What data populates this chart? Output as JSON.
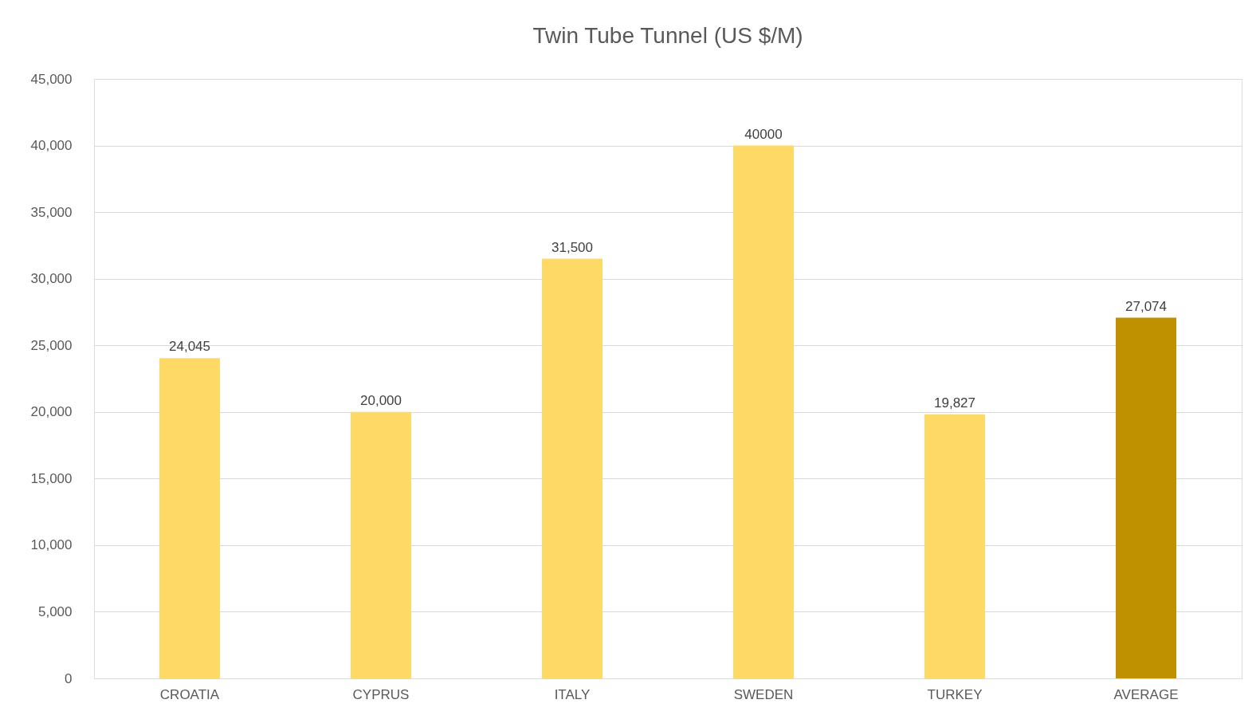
{
  "chart_data": {
    "type": "bar",
    "title": "Twin Tube Tunnel (US $/M)",
    "categories": [
      "CROATIA",
      "CYPRUS",
      "ITALY",
      "SWEDEN",
      "TURKEY",
      "AVERAGE"
    ],
    "values": [
      24045,
      20000,
      31500,
      40000,
      19827,
      27074
    ],
    "value_labels": [
      "24,045",
      "20,000",
      "31,500",
      "40000",
      "19,827",
      "27,074"
    ],
    "colors": [
      "#ffd966",
      "#ffd966",
      "#ffd966",
      "#ffd966",
      "#ffd966",
      "#bf9000"
    ],
    "ylim": [
      0,
      45000
    ],
    "yticks": [
      0,
      {
        "value": 5000,
        "label": "5,000"
      },
      {
        "value": 10000,
        "label": "10,000"
      },
      {
        "value": 15000,
        "label": "15,000"
      },
      {
        "value": 20000,
        "label": "20,000"
      },
      {
        "value": 25000,
        "label": "25,000"
      },
      {
        "value": 30000,
        "label": "30,000"
      },
      {
        "value": 35000,
        "label": "35,000"
      },
      {
        "value": 40000,
        "label": "40,000"
      },
      {
        "value": 45000,
        "label": "45,000"
      }
    ],
    "grid": "y",
    "legend": false
  }
}
